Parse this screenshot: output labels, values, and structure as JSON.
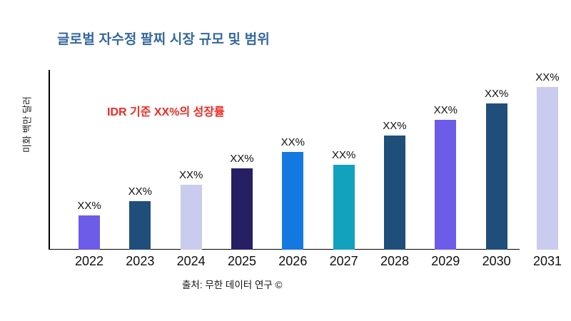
{
  "title": {
    "text": "글로벌 자수정 팔찌 시장 규모 및 범위",
    "color": "#33689E"
  },
  "annotation": {
    "text": "IDR 기준 XX%의 성장률",
    "color": "#EE2B22"
  },
  "footer": {
    "source_text": "출처: 무한 데이터 연구 ©"
  },
  "chart_data": {
    "type": "bar",
    "title": "글로벌 자수정 팔찌 시장 규모 및 범위",
    "xlabel": "",
    "ylabel": "미화 백만 달러",
    "categories": [
      "2022",
      "2023",
      "2024",
      "2025",
      "2026",
      "2027",
      "2028",
      "2029",
      "2030",
      "2031"
    ],
    "values": [
      21,
      30,
      40,
      50,
      60,
      52,
      70,
      80,
      90,
      100
    ],
    "bar_labels": [
      "XX%",
      "XX%",
      "XX%",
      "XX%",
      "XX%",
      "XX%",
      "XX%",
      "XX%",
      "XX%",
      "XX%"
    ],
    "bar_colors": [
      "#6C5CE7",
      "#1F4E7A",
      "#C9CBEF",
      "#261F63",
      "#1379E0",
      "#12A2BE",
      "#1F4E7A",
      "#6C5CE7",
      "#1F4E7A",
      "#C9CBEF"
    ],
    "ylim": [
      0,
      100
    ],
    "grid": false,
    "legend": "none",
    "axis_color": "#000000"
  }
}
